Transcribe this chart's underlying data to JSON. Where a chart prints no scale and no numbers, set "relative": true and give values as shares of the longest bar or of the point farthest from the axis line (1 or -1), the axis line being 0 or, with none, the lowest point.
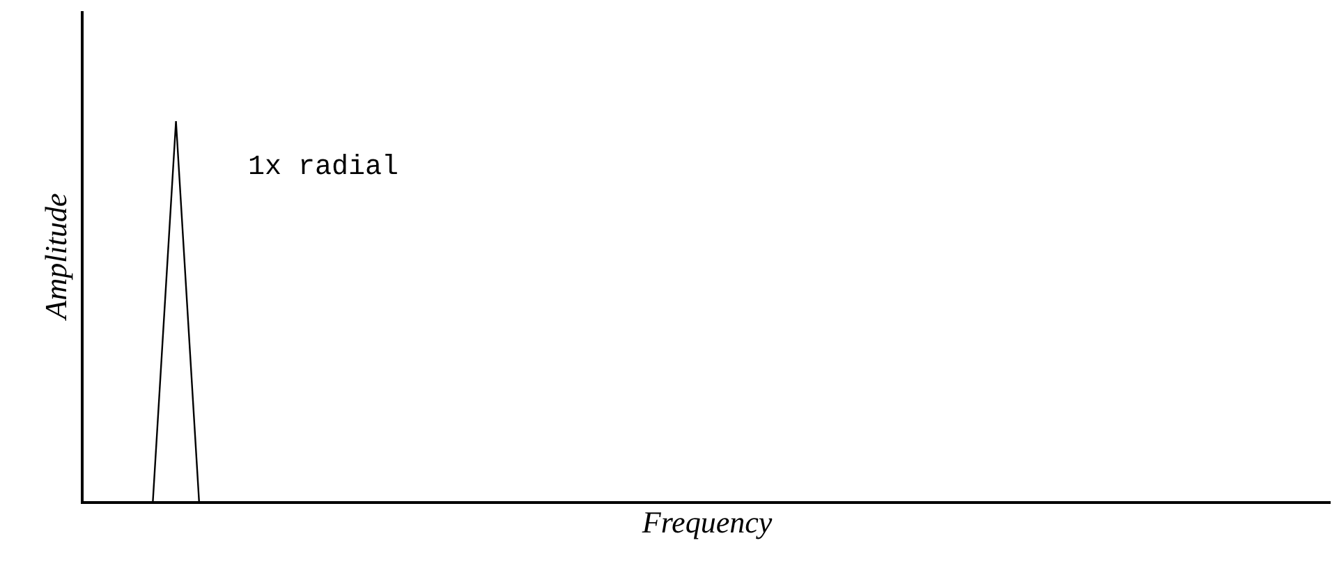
{
  "chart_data": {
    "type": "line",
    "relative": true,
    "xlabel": "Frequency",
    "ylabel": "Amplitude",
    "annotations": [
      "1x radial"
    ],
    "categories": [
      null,
      null,
      null,
      null,
      null,
      null,
      null,
      null,
      null,
      null,
      null,
      null,
      null,
      null,
      null,
      null,
      null,
      null,
      null,
      null,
      null,
      null,
      null,
      null,
      null,
      null,
      null,
      null,
      null,
      null,
      null,
      null,
      null,
      null,
      null,
      null,
      null,
      null,
      null,
      null,
      null,
      null,
      null,
      null,
      null,
      null,
      null,
      null,
      null,
      null,
      null,
      null,
      null,
      null,
      null
    ],
    "series": [
      {
        "color": "#000000",
        "values": [
          null,
          null,
          null,
          0,
          1,
          0,
          null,
          null,
          null,
          null,
          null,
          null,
          null,
          null,
          null,
          null,
          null,
          null,
          null,
          null,
          null,
          null,
          null,
          null,
          null,
          null,
          null,
          null,
          null,
          null,
          null,
          null,
          null,
          null,
          null,
          null,
          null,
          null,
          null,
          null,
          null,
          null,
          null,
          null,
          null,
          null,
          null,
          null,
          null,
          null,
          null,
          null,
          null,
          null,
          null
        ]
      }
    ],
    "marker": "none",
    "line_style": "solid"
  }
}
